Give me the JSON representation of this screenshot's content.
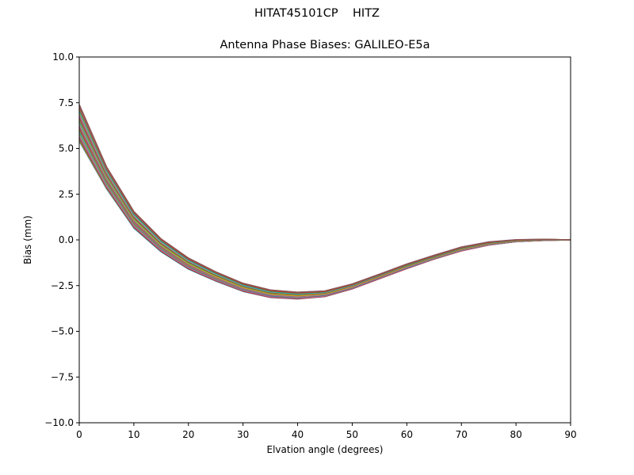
{
  "figure": {
    "suptitle": "HITAT45101CP    HITZ",
    "title": "Antenna Phase Biases: GALILEO-E5a"
  },
  "chart_data": {
    "type": "line",
    "title": "Antenna Phase Biases: GALILEO-E5a",
    "suptitle": "HITAT45101CP    HITZ",
    "xlabel": "Elvation angle (degrees)",
    "ylabel": "Bias (mm)",
    "xlim": [
      0,
      90
    ],
    "ylim": [
      -10,
      10
    ],
    "xticks": [
      0,
      10,
      20,
      30,
      40,
      50,
      60,
      70,
      80,
      90
    ],
    "yticks": [
      -10.0,
      -7.5,
      -5.0,
      -2.5,
      0.0,
      2.5,
      5.0,
      7.5,
      10.0
    ],
    "ytick_labels": [
      "−10.0",
      "−7.5",
      "−5.0",
      "−2.5",
      "0.0",
      "2.5",
      "5.0",
      "7.5",
      "10.0"
    ],
    "grid": false,
    "legend": "none",
    "x": [
      0,
      5,
      10,
      15,
      20,
      25,
      30,
      35,
      40,
      45,
      50,
      55,
      60,
      65,
      70,
      75,
      80,
      85,
      90
    ],
    "mean_curve": [
      6.4,
      3.4,
      1.1,
      -0.3,
      -1.3,
      -2.0,
      -2.6,
      -2.95,
      -3.05,
      -2.95,
      -2.55,
      -2.0,
      -1.45,
      -0.95,
      -0.5,
      -0.2,
      -0.05,
      0.0,
      0.0
    ],
    "spread": [
      1.0,
      0.6,
      0.45,
      0.35,
      0.3,
      0.25,
      0.22,
      0.2,
      0.18,
      0.15,
      0.13,
      0.12,
      0.12,
      0.1,
      0.1,
      0.08,
      0.05,
      0.03,
      0.0
    ],
    "series_count": 36,
    "series_colors": [
      "#1f77b4",
      "#ff7f0e",
      "#2ca02c",
      "#d62728",
      "#9467bd",
      "#8c564b",
      "#e377c2",
      "#7f7f7f",
      "#bcbd22",
      "#17becf"
    ],
    "note": "Many azimuth-dependent curves forming a tight band; values estimated from pixels."
  }
}
